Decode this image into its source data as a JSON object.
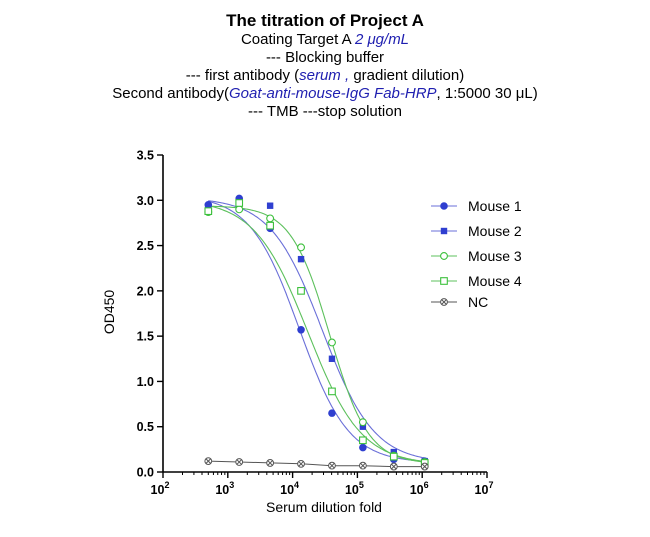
{
  "titles": {
    "main": "The titration of Project A",
    "line2_a": "Coating Target A ",
    "line2_b": "2 μg/mL",
    "line3": "--- Blocking buffer",
    "line4_a": "--- first antibody (",
    "line4_b": "serum , ",
    "line4_c": "gradient dilution)",
    "line5_a": "Second antibody(",
    "line5_b": "Goat-anti-mouse-IgG Fab-HRP",
    "line5_c": ", 1:5000 30 μL)",
    "line6": "--- TMB ---stop solution"
  },
  "colors": {
    "mouse1": "#2f3fd0",
    "mouse2": "#2f3fd0",
    "mouse3": "#3cc03c",
    "mouse4": "#3cc03c",
    "nc": "#555555",
    "fit_mouse1": "#6a6fd8",
    "fit_mouse2": "#6a6fd8",
    "fit_mouse3": "#5cc05c",
    "fit_mouse4": "#5cc05c"
  },
  "chart_data": {
    "type": "scatter",
    "title": "",
    "xlabel": "Serum dilution fold",
    "ylabel": "OD450",
    "xscale": "log",
    "xlim": [
      100,
      10000000
    ],
    "ylim": [
      0,
      3.5
    ],
    "xticks": [
      {
        "value": 100,
        "base": "10",
        "exp": "2"
      },
      {
        "value": 1000,
        "base": "10",
        "exp": "3"
      },
      {
        "value": 10000,
        "base": "10",
        "exp": "4"
      },
      {
        "value": 100000,
        "base": "10",
        "exp": "5"
      },
      {
        "value": 1000000,
        "base": "10",
        "exp": "6"
      },
      {
        "value": 10000000,
        "base": "10",
        "exp": "7"
      }
    ],
    "yticks": [
      "0.0",
      "0.5",
      "1.0",
      "1.5",
      "2.0",
      "2.5",
      "3.0",
      "3.5"
    ],
    "legend_position": "right",
    "x": [
      500,
      1500,
      4500,
      13500,
      40500,
      121500,
      364500,
      1093500
    ],
    "series": [
      {
        "name": "Mouse 1",
        "marker": "circle-filled",
        "y": [
          2.95,
          3.02,
          2.69,
          1.57,
          0.65,
          0.27,
          0.14,
          0.12
        ]
      },
      {
        "name": "Mouse 2",
        "marker": "square-filled",
        "y": [
          2.93,
          2.99,
          2.94,
          2.35,
          1.25,
          0.5,
          0.22,
          0.12
        ]
      },
      {
        "name": "Mouse 3",
        "marker": "circle-open",
        "y": [
          2.87,
          2.9,
          2.8,
          2.48,
          1.43,
          0.55,
          0.18,
          0.11
        ]
      },
      {
        "name": "Mouse 4",
        "marker": "square-open",
        "y": [
          2.88,
          2.97,
          2.72,
          2.0,
          0.89,
          0.35,
          0.17,
          0.1
        ]
      },
      {
        "name": "NC",
        "marker": "circle-x",
        "y": [
          0.12,
          0.11,
          0.1,
          0.09,
          0.07,
          0.07,
          0.06,
          0.06
        ]
      }
    ]
  }
}
